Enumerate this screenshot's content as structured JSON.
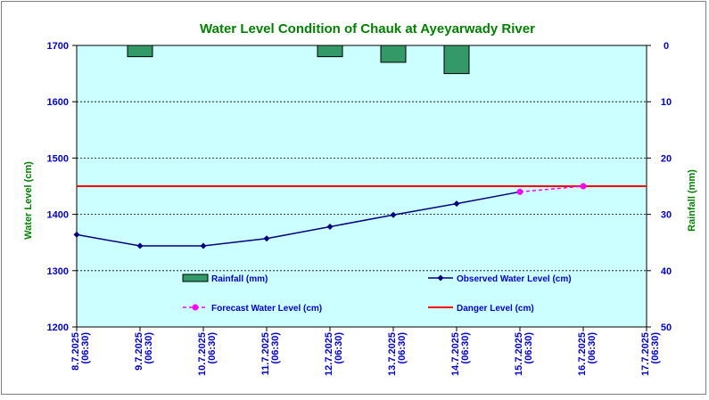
{
  "chart_data": {
    "type": "line",
    "title": "Water Level Condition of Chauk at Ayeyarwady River",
    "ylabel_left": "Water Level (cm)",
    "ylabel_right": "Rainfall (mm)",
    "ylim_left": [
      1200,
      1700
    ],
    "yticks_left": [
      "1200",
      "1300",
      "1400",
      "1500",
      "1600",
      "1700"
    ],
    "ylim_right": [
      0,
      50
    ],
    "yticks_right": [
      "0",
      "10",
      "20",
      "30",
      "40",
      "50"
    ],
    "right_axis_inverted": true,
    "x_start": "8.7.2025",
    "x_end": "17.7.2025",
    "categories": [
      {
        "date": "8.7.2025",
        "time": "(06:30)"
      },
      {
        "date": "9.7.2025",
        "time": "(06:30)"
      },
      {
        "date": "10.7.2025",
        "time": "(06:30)"
      },
      {
        "date": "11.7.2025",
        "time": "(06:30)"
      },
      {
        "date": "12.7.2025",
        "time": "(06:30)"
      },
      {
        "date": "13.7.2025",
        "time": "(06:30)"
      },
      {
        "date": "14.7.2025",
        "time": "(06:30)"
      },
      {
        "date": "15.7.2025",
        "time": "(06:30)"
      },
      {
        "date": "16.7.2025",
        "time": "(06:30)"
      },
      {
        "date": "17.7.2025",
        "time": "(06:30)"
      }
    ],
    "grid": true,
    "series": [
      {
        "name": "Rainfall (mm)",
        "kind": "bar",
        "axis": "right",
        "color": "#339966",
        "points": [
          {
            "x": "9.7.2025",
            "y": 2
          },
          {
            "x": "12.7.2025",
            "y": 2
          },
          {
            "x": "13.7.2025",
            "y": 3
          },
          {
            "x": "14.7.2025",
            "y": 5
          }
        ]
      },
      {
        "name": "Observed Water Level (cm)",
        "kind": "line",
        "axis": "left",
        "color": "#000080",
        "points": [
          {
            "x": "8.7.2025",
            "y": 1364
          },
          {
            "x": "9.7.2025",
            "y": 1344
          },
          {
            "x": "10.7.2025",
            "y": 1344
          },
          {
            "x": "11.7.2025",
            "y": 1357
          },
          {
            "x": "12.7.2025",
            "y": 1378
          },
          {
            "x": "13.7.2025",
            "y": 1399
          },
          {
            "x": "14.7.2025",
            "y": 1419
          },
          {
            "x": "15.7.2025",
            "y": 1440
          }
        ]
      },
      {
        "name": "Forecast Water Level (cm)",
        "kind": "line-dashed",
        "axis": "left",
        "color": "#ff00ff",
        "points": [
          {
            "x": "15.7.2025",
            "y": 1440
          },
          {
            "x": "16.7.2025",
            "y": 1450
          }
        ]
      },
      {
        "name": "Danger Level (cm)",
        "kind": "hline",
        "axis": "left",
        "color": "#ff0000",
        "value": 1450
      }
    ],
    "legend_placement": "bottom-inside",
    "colors": {
      "plot_background": "#ccffff",
      "title": "#008000",
      "axis_title": "#008000",
      "tick_labels": "#0000cc"
    }
  }
}
